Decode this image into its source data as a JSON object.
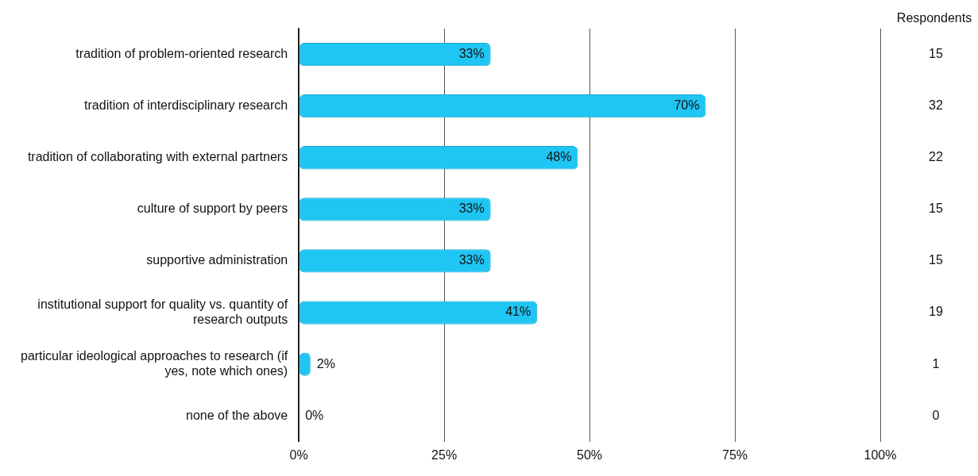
{
  "chart_data": {
    "type": "bar",
    "orientation": "horizontal",
    "categories": [
      "tradition of problem-oriented research",
      "tradition of interdisciplinary research",
      "tradition of collaborating with external partners",
      "culture of support by peers",
      "supportive administration",
      "institutional support for quality vs. quantity of research outputs",
      "particular ideological approaches to research (if yes, note which ones)",
      "none of the above"
    ],
    "values": [
      33,
      70,
      48,
      33,
      33,
      41,
      2,
      0
    ],
    "value_labels": [
      "33%",
      "70%",
      "48%",
      "33%",
      "33%",
      "41%",
      "2%",
      "0%"
    ],
    "color": "#1fc5f3",
    "xlim": [
      0,
      100
    ],
    "xticks": [
      {
        "value": 0,
        "label": "0%"
      },
      {
        "value": 25,
        "label": "25%"
      },
      {
        "value": 50,
        "label": "50%"
      },
      {
        "value": 75,
        "label": "75%"
      },
      {
        "value": 100,
        "label": "100%"
      }
    ],
    "grid": "x",
    "legend": false,
    "annotations": [
      "Respondents",
      "15",
      "32",
      "22",
      "15",
      "15",
      "19",
      "1",
      "0"
    ]
  }
}
